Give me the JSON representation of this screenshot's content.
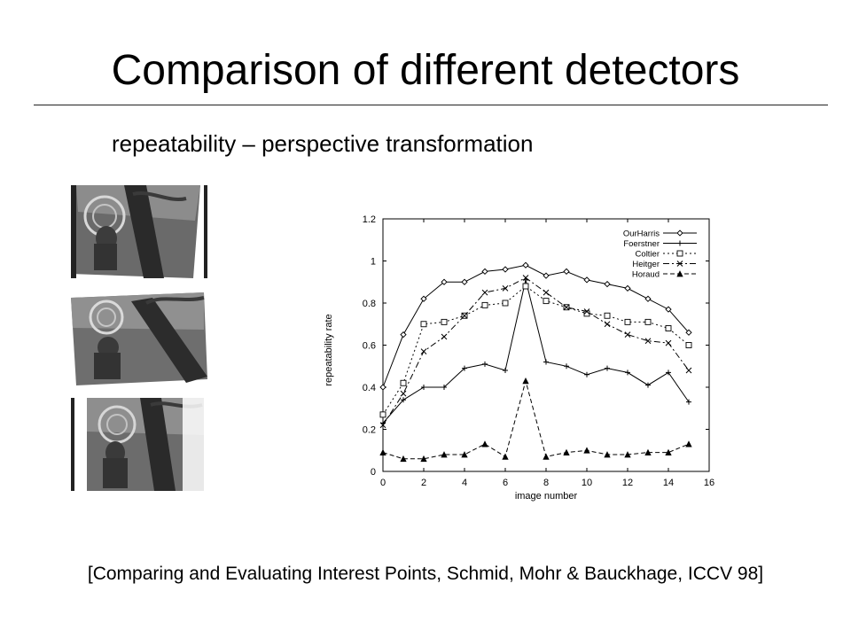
{
  "slide": {
    "title": "Comparison of different detectors",
    "subtitle": "repeatability – perspective transformation",
    "citation": "[Comparing and Evaluating Interest Points, Schmid, Mohr & Bauckhage, ICCV 98]"
  },
  "thumbnails": [
    {
      "name": "painting-view-1"
    },
    {
      "name": "painting-view-2"
    },
    {
      "name": "painting-view-3"
    }
  ],
  "chart_data": {
    "type": "line",
    "xlabel": "image number",
    "ylabel": "repeatability rate",
    "xlim": [
      0,
      16
    ],
    "ylim": [
      0,
      1.2
    ],
    "xticks": [
      "0",
      "2",
      "4",
      "6",
      "8",
      "10",
      "12",
      "14",
      "16"
    ],
    "yticks": [
      "0",
      "0.2",
      "0.4",
      "0.6",
      "0.8",
      "1",
      "1.2"
    ],
    "grid": false,
    "legend_position": "top-right",
    "series": [
      {
        "name": "OurHarris",
        "marker": "diamond",
        "dash": "",
        "x": [
          0,
          1,
          2,
          3,
          4,
          5,
          6,
          7,
          8,
          9,
          10,
          11,
          12,
          13,
          14,
          15
        ],
        "y": [
          0.4,
          0.65,
          0.82,
          0.9,
          0.9,
          0.95,
          0.96,
          0.98,
          0.93,
          0.95,
          0.91,
          0.89,
          0.87,
          0.82,
          0.77,
          0.66
        ]
      },
      {
        "name": "Foerstner",
        "marker": "plus",
        "dash": "",
        "x": [
          0,
          1,
          2,
          3,
          4,
          5,
          6,
          7,
          8,
          9,
          10,
          11,
          12,
          13,
          14,
          15
        ],
        "y": [
          0.23,
          0.34,
          0.4,
          0.4,
          0.49,
          0.51,
          0.48,
          0.91,
          0.52,
          0.5,
          0.46,
          0.49,
          0.47,
          0.41,
          0.47,
          0.33
        ]
      },
      {
        "name": "Coltier",
        "marker": "square",
        "dash": "2,3",
        "x": [
          0,
          1,
          2,
          3,
          4,
          5,
          6,
          7,
          8,
          9,
          10,
          11,
          12,
          13,
          14,
          15
        ],
        "y": [
          0.27,
          0.42,
          0.7,
          0.71,
          0.74,
          0.79,
          0.8,
          0.88,
          0.81,
          0.78,
          0.75,
          0.74,
          0.71,
          0.71,
          0.68,
          0.6
        ]
      },
      {
        "name": "Heitger",
        "marker": "cross",
        "dash": "7,3,2,3",
        "x": [
          0,
          1,
          2,
          3,
          4,
          5,
          6,
          7,
          8,
          9,
          10,
          11,
          12,
          13,
          14,
          15
        ],
        "y": [
          0.22,
          0.37,
          0.57,
          0.64,
          0.74,
          0.85,
          0.87,
          0.92,
          0.85,
          0.78,
          0.76,
          0.7,
          0.65,
          0.62,
          0.61,
          0.48
        ]
      },
      {
        "name": "Horaud",
        "marker": "triangle",
        "dash": "5,3",
        "x": [
          0,
          1,
          2,
          3,
          4,
          5,
          6,
          7,
          8,
          9,
          10,
          11,
          12,
          13,
          14,
          15
        ],
        "y": [
          0.09,
          0.06,
          0.06,
          0.08,
          0.08,
          0.13,
          0.07,
          0.43,
          0.07,
          0.09,
          0.1,
          0.08,
          0.08,
          0.09,
          0.09,
          0.13
        ]
      }
    ]
  }
}
